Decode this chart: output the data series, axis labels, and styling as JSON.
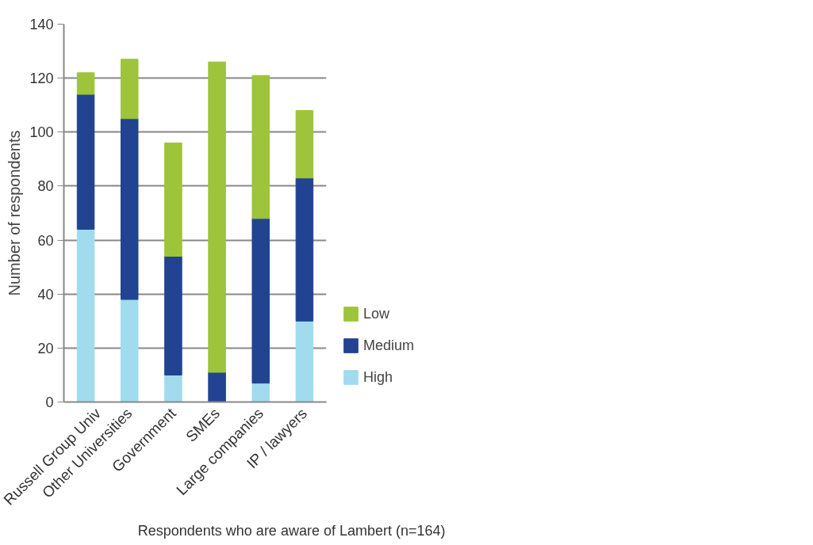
{
  "chart_data": {
    "type": "bar",
    "stacked": true,
    "categories": [
      "Russell Group Univ",
      "Other Universities",
      "Government",
      "SMEs",
      "Large companies",
      "IP / lawyers"
    ],
    "series": [
      {
        "name": "High",
        "color": "#a2dbee",
        "values": [
          64,
          38,
          10,
          0,
          7,
          30
        ]
      },
      {
        "name": "Medium",
        "color": "#224391",
        "values": [
          50,
          67,
          44,
          11,
          61,
          53
        ]
      },
      {
        "name": "Low",
        "color": "#9dc43b",
        "values": [
          8,
          22,
          42,
          115,
          53,
          25
        ]
      }
    ],
    "ylabel": "Number of respondents",
    "ylim": [
      0,
      140
    ],
    "yticks": [
      0,
      20,
      40,
      60,
      80,
      100,
      120,
      140
    ],
    "grid": "y",
    "legend": "right",
    "annotations": [
      "Respondents who are aware of Lambert (n=164)"
    ]
  }
}
